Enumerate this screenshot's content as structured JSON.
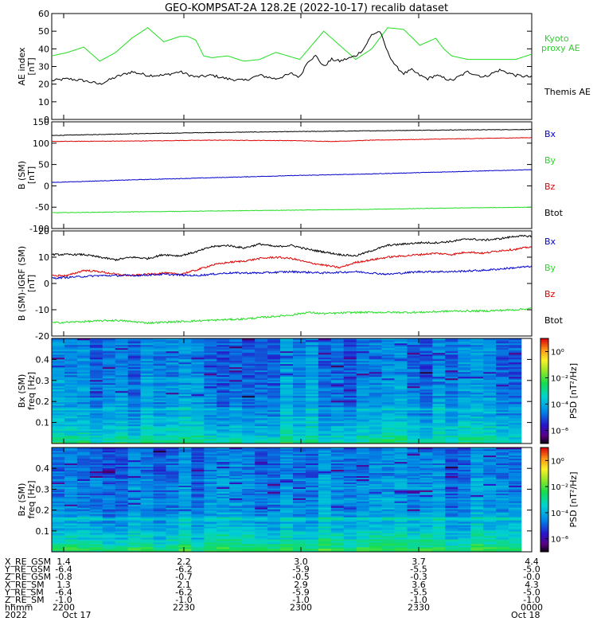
{
  "title": "GEO-KOMPSAT-2A 128.2E (2022-10-17) recalib dataset",
  "colors": {
    "black": "#000000",
    "red": "#dd0000",
    "blue": "#0000cc",
    "green": "#22dd22",
    "kyoto": "#33cc33"
  },
  "chart_data": [
    {
      "type": "line",
      "name": "ae-index",
      "ylabel": "AE index",
      "yunit": "[nT]",
      "ylim": [
        0,
        60
      ],
      "yticks": [
        "0",
        "10",
        "20",
        "30",
        "40",
        "50",
        "60"
      ],
      "x_time": [
        "2200",
        "2230",
        "2300",
        "2330",
        "0000"
      ],
      "legend": [
        {
          "label": "Kyoto",
          "color": "green"
        },
        {
          "label": "proxy AE",
          "color": "green"
        },
        {
          "label": "Themis AE",
          "color": "black"
        }
      ],
      "series": [
        {
          "name": "Kyoto proxy AE",
          "color": "green",
          "x": [
            0,
            2,
            4,
            6,
            8,
            10,
            12,
            14,
            16,
            17,
            18,
            19,
            20,
            22,
            24,
            26,
            28,
            31,
            34,
            36,
            38,
            40,
            42,
            44,
            46,
            48,
            49,
            50,
            52,
            54,
            56,
            58,
            60
          ],
          "y": [
            36,
            38,
            41,
            33,
            38,
            46,
            52,
            44,
            47,
            47,
            45,
            36,
            35,
            36,
            33,
            34,
            38,
            34,
            50,
            42,
            34,
            40,
            52,
            51,
            42,
            46,
            40,
            36,
            34,
            34,
            34,
            34,
            37
          ]
        },
        {
          "name": "Themis AE",
          "color": "black",
          "x": [
            0,
            2,
            4,
            6,
            8,
            10,
            12,
            14,
            16,
            18,
            20,
            22,
            24,
            26,
            28,
            30,
            31,
            32,
            33,
            34,
            35,
            36,
            38,
            39,
            40,
            41,
            42,
            43,
            44,
            45,
            46,
            47,
            48,
            50,
            52,
            54,
            56,
            58,
            60
          ],
          "y": [
            22,
            23,
            22,
            20,
            24,
            27,
            25,
            25,
            27,
            24,
            25,
            23,
            22,
            25,
            23,
            26,
            24,
            33,
            36,
            30,
            34,
            33,
            36,
            40,
            48,
            50,
            38,
            30,
            26,
            28,
            25,
            23,
            25,
            22,
            27,
            24,
            28,
            25,
            24
          ]
        }
      ]
    },
    {
      "type": "line",
      "name": "b-sm",
      "ylabel": "B (SM)",
      "yunit": "[nT]",
      "ylim": [
        -100,
        150
      ],
      "yticks": [
        "-100",
        "-50",
        "0",
        "50",
        "100",
        "150"
      ],
      "legend": [
        {
          "label": "Bx",
          "color": "blue"
        },
        {
          "label": "By",
          "color": "green"
        },
        {
          "label": "Bz",
          "color": "red"
        },
        {
          "label": "Btot",
          "color": "black"
        }
      ],
      "series": [
        {
          "name": "Btot",
          "color": "black",
          "x": [
            0,
            10,
            20,
            30,
            40,
            50,
            60
          ],
          "y": [
            118,
            122,
            125,
            127,
            129,
            131,
            132
          ]
        },
        {
          "name": "Bz",
          "color": "red",
          "x": [
            0,
            10,
            20,
            30,
            35,
            40,
            50,
            60
          ],
          "y": [
            104,
            105,
            107,
            106,
            104,
            107,
            110,
            113
          ]
        },
        {
          "name": "Bx",
          "color": "blue",
          "x": [
            0,
            10,
            20,
            30,
            40,
            50,
            60
          ],
          "y": [
            8,
            14,
            19,
            24,
            28,
            33,
            38
          ]
        },
        {
          "name": "By",
          "color": "green",
          "x": [
            0,
            10,
            20,
            30,
            40,
            50,
            60
          ],
          "y": [
            -63,
            -61,
            -59,
            -57,
            -55,
            -52,
            -50
          ]
        }
      ]
    },
    {
      "type": "line",
      "name": "b-sm-minus-igrf",
      "ylabel": "B (SM)-IGRF (SM)",
      "yunit": "[nT]",
      "ylim": [
        -20,
        20
      ],
      "yticks": [
        "-20",
        "-10",
        "0",
        "10",
        "20"
      ],
      "legend": [
        {
          "label": "Bx",
          "color": "blue"
        },
        {
          "label": "By",
          "color": "green"
        },
        {
          "label": "Bz",
          "color": "red"
        },
        {
          "label": "Btot",
          "color": "black"
        }
      ],
      "series": [
        {
          "name": "Btot",
          "color": "black",
          "x": [
            0,
            4,
            8,
            10,
            12,
            14,
            16,
            18,
            20,
            22,
            24,
            26,
            28,
            30,
            32,
            34,
            36,
            38,
            40,
            42,
            44,
            46,
            48,
            50,
            52,
            54,
            56,
            58,
            60
          ],
          "y": [
            11,
            11,
            9,
            10,
            9.5,
            11,
            10.5,
            12,
            14,
            14.5,
            13.5,
            15,
            14,
            14.5,
            13,
            12,
            11,
            10.5,
            12.5,
            14.5,
            15,
            15.5,
            15.5,
            16,
            17,
            16.5,
            17,
            18,
            18
          ]
        },
        {
          "name": "Bz",
          "color": "red",
          "x": [
            0,
            2,
            4,
            6,
            8,
            10,
            12,
            14,
            16,
            18,
            20,
            22,
            24,
            26,
            28,
            30,
            32,
            34,
            36,
            38,
            40,
            42,
            44,
            46,
            48,
            50,
            52,
            54,
            56,
            58,
            60
          ],
          "y": [
            3,
            3,
            5,
            4.5,
            3.5,
            3,
            3.5,
            4,
            3.5,
            5,
            7,
            8,
            8.5,
            9.5,
            10,
            9.5,
            8,
            7,
            6,
            8,
            9,
            10,
            10.5,
            11,
            11.5,
            11,
            12,
            11.5,
            12.5,
            13,
            14
          ]
        },
        {
          "name": "Bx",
          "color": "blue",
          "x": [
            0,
            6,
            10,
            14,
            18,
            22,
            26,
            30,
            34,
            38,
            42,
            46,
            50,
            54,
            58,
            60
          ],
          "y": [
            2,
            3,
            3,
            3.5,
            3,
            4,
            4,
            4.5,
            4,
            4.5,
            3.5,
            4.5,
            4.5,
            5,
            6,
            6.5
          ]
        },
        {
          "name": "By",
          "color": "green",
          "x": [
            0,
            4,
            8,
            12,
            16,
            20,
            24,
            28,
            30,
            32,
            34,
            38,
            42,
            46,
            50,
            54,
            58,
            60
          ],
          "y": [
            -15,
            -14.5,
            -14,
            -15,
            -14.5,
            -14,
            -13.5,
            -12.5,
            -12,
            -11,
            -11.5,
            -11,
            -11,
            -11,
            -10.5,
            -10.5,
            -10,
            -9.5
          ]
        }
      ]
    },
    {
      "type": "heatmap",
      "name": "bx-spectrogram",
      "ylabel": "Bx (SM)",
      "yunit": "freq [Hz]",
      "ylim": [
        0,
        0.5
      ],
      "yticks": [
        "0.1",
        "0.2",
        "0.3",
        "0.4"
      ],
      "colorbar_label": "PSD [nT²/Hz]",
      "colorbar_ticks": [
        "10⁰",
        "10⁻²",
        "10⁻⁴",
        "10⁻⁶"
      ],
      "colorbar_range_log": [
        -7,
        1
      ],
      "model_log_psd": {
        "low_freq_peak": -2.6,
        "high_freq": -4.6,
        "decay_hz": 0.1,
        "band_hz": 0.17
      }
    },
    {
      "type": "heatmap",
      "name": "bz-spectrogram",
      "ylabel": "Bz (SM)",
      "yunit": "freq [Hz]",
      "ylim": [
        0,
        0.5
      ],
      "yticks": [
        "0.1",
        "0.2",
        "0.3",
        "0.4"
      ],
      "colorbar_label": "PSD [nT²/Hz]",
      "colorbar_ticks": [
        "10⁰",
        "10⁻²",
        "10⁻⁴",
        "10⁻⁶"
      ],
      "colorbar_range_log": [
        -7,
        1
      ],
      "model_log_psd": {
        "low_freq_peak": -2.4,
        "high_freq": -4.7,
        "decay_hz": 0.12,
        "band_hz": 0.16
      }
    }
  ],
  "ephemeris": {
    "rows": [
      {
        "label": "X_RE_GSM",
        "values": [
          "1.4",
          "2.2",
          "3.0",
          "3.7",
          "4.4"
        ]
      },
      {
        "label": "Y_RE_GSM",
        "values": [
          "-6.4",
          "-6.2",
          "-5.9",
          "-5.5",
          "-5.0"
        ]
      },
      {
        "label": "Z_RE_GSM",
        "values": [
          "-0.8",
          "-0.7",
          "-0.5",
          "-0.3",
          "-0.0"
        ]
      },
      {
        "label": "X_RE_SM",
        "values": [
          "1.3",
          "2.1",
          "2.9",
          "3.6",
          "4.3"
        ]
      },
      {
        "label": "Y_RE_SM",
        "values": [
          "-6.4",
          "-6.2",
          "-5.9",
          "-5.5",
          "-5.0"
        ]
      },
      {
        "label": "Z_RE_SM",
        "values": [
          "-1.0",
          "-1.0",
          "-1.0",
          "-1.0",
          "-1.0"
        ]
      },
      {
        "label": "hhmm",
        "values": [
          "2200",
          "2230",
          "2300",
          "2330",
          "0000"
        ]
      },
      {
        "label": "2022",
        "values": [
          "Oct 17",
          "",
          "",
          "",
          "Oct 18"
        ]
      }
    ]
  }
}
